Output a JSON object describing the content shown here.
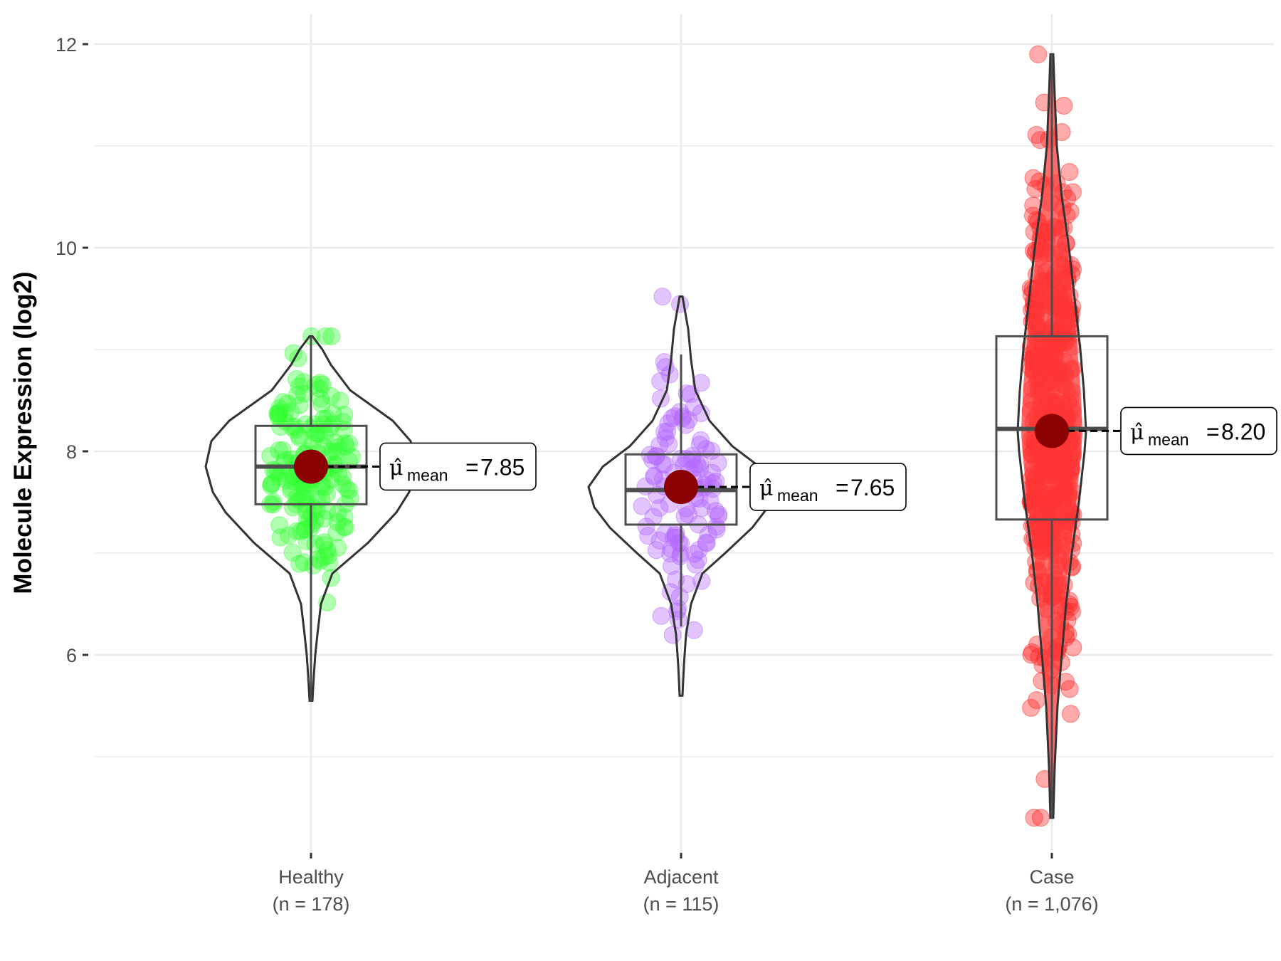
{
  "chart_data": {
    "type": "violin",
    "ylabel": "Molecule Expression (log2)",
    "xlabel": "",
    "ylim": [
      4.0,
      12.6
    ],
    "yticks": [
      6,
      8,
      10,
      12
    ],
    "grid": true,
    "legend": "none",
    "groups": [
      {
        "name": "Healthy",
        "n_label": "(n = 178)",
        "color": "#22ee22",
        "point_color": "#33ff33",
        "mean": 7.85,
        "mean_label": "7.85",
        "median": 7.85,
        "q1": 7.48,
        "q3": 8.25,
        "whisker_low": 5.55,
        "whisker_high": 9.13,
        "min": 5.55,
        "max": 9.13
      },
      {
        "name": "Adjacent",
        "n_label": "(n = 115)",
        "color": "#b266ff",
        "point_color": "#b266ff",
        "mean": 7.65,
        "mean_label": "7.65",
        "median": 7.62,
        "q1": 7.28,
        "q3": 7.97,
        "whisker_low": 6.28,
        "whisker_high": 8.95,
        "min": 5.6,
        "max": 9.52
      },
      {
        "name": "Case",
        "n_label": "(n = 1,076)",
        "color": "#ff1a1a",
        "point_color": "#ff2222",
        "mean": 8.2,
        "mean_label": "8.20",
        "median": 8.22,
        "q1": 7.33,
        "q3": 9.13,
        "whisker_low": 4.4,
        "whisker_high": 11.9,
        "min": 4.4,
        "max": 11.9
      }
    ],
    "mean_label_prefix": "μ̂",
    "mean_label_subscript": "mean",
    "mean_marker_color": "#8b0000"
  }
}
